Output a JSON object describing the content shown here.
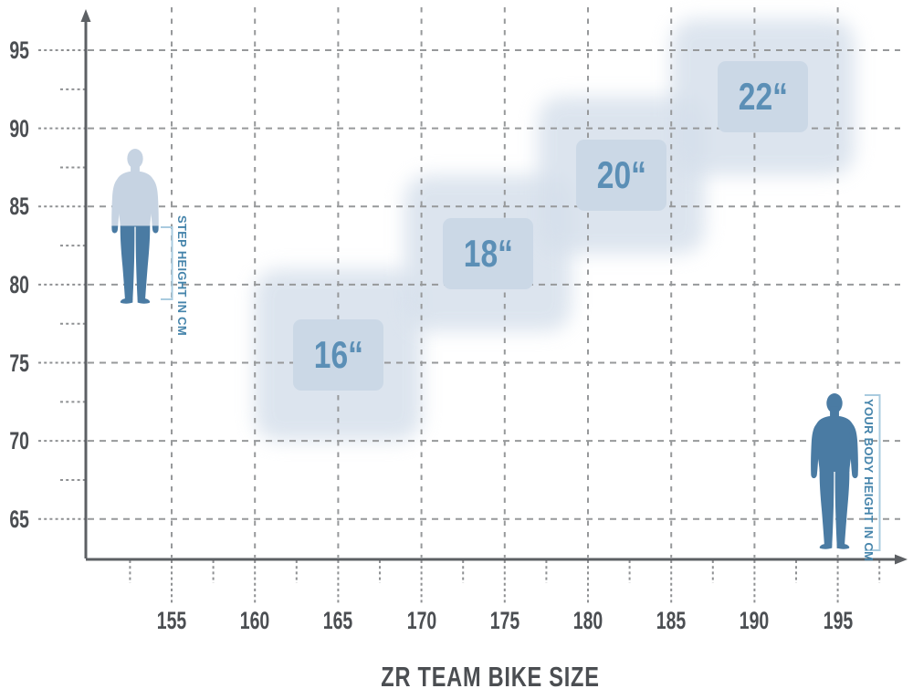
{
  "title": "ZR TEAM BIKE SIZE",
  "annotations": {
    "step_height_label": "STEP HEIGHT IN CM",
    "body_height_label": "YOUR BODY HEIGHT IN CM"
  },
  "colors": {
    "size_label_blue": "#5b8fb6",
    "annotation_blue": "#4584ab",
    "bracket_blue": "#a9cbdf",
    "region_soft_fill": "#d5dfeb",
    "region_box_fill": "#cbd8e6",
    "figure_light": "#c6d3e2",
    "figure_dark": "#4a7ba3",
    "axis_gray": "#5d6064",
    "grid_gray": "#97999b",
    "text_gray": "#4b4e52"
  },
  "chart_data": {
    "type": "area",
    "title": "ZR TEAM BIKE SIZE",
    "xlabel": "YOUR BODY HEIGHT IN CM",
    "ylabel": "STEP HEIGHT IN CM",
    "xlim": [
      150,
      198
    ],
    "ylim": [
      62,
      97
    ],
    "x_ticks": [
      155,
      160,
      165,
      170,
      175,
      180,
      185,
      190,
      195
    ],
    "y_ticks": [
      95,
      90,
      85,
      80,
      75,
      70,
      65
    ],
    "grid": "dashed",
    "legend_position": "none",
    "series": [
      {
        "name": "16“",
        "body_height_cm": [
          160,
          170
        ],
        "step_height_cm": [
          70,
          81
        ]
      },
      {
        "name": "18“",
        "body_height_cm": [
          169,
          179
        ],
        "step_height_cm": [
          77,
          87
        ]
      },
      {
        "name": "20“",
        "body_height_cm": [
          177,
          187
        ],
        "step_height_cm": [
          82,
          92
        ]
      },
      {
        "name": "22“",
        "body_height_cm": [
          185,
          196
        ],
        "step_height_cm": [
          87,
          97
        ]
      }
    ]
  }
}
